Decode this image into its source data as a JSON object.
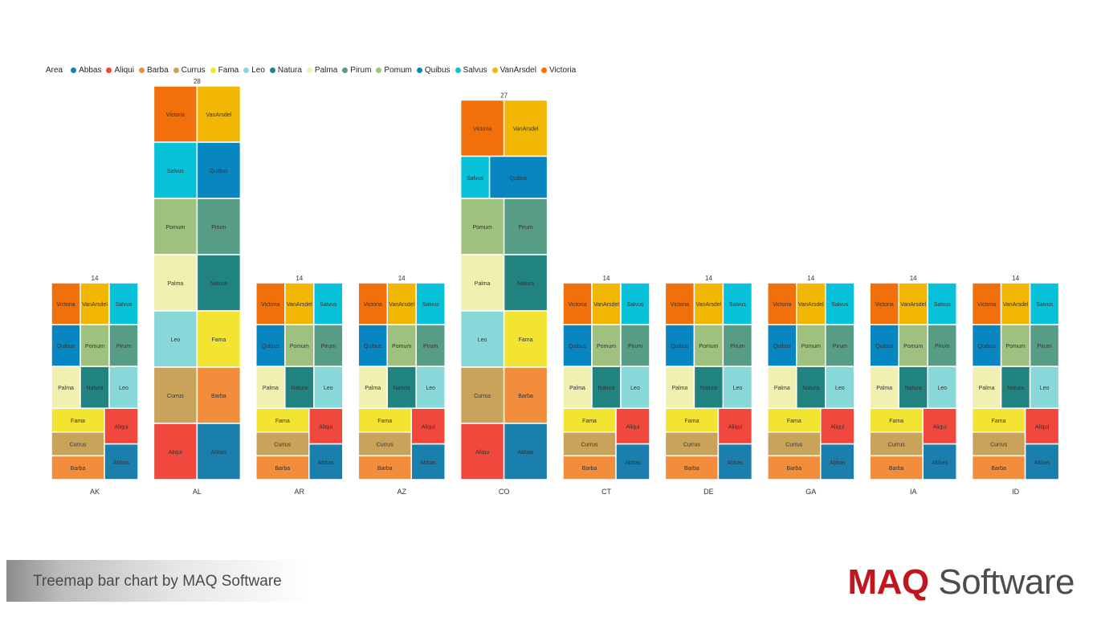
{
  "chart_data": {
    "type": "treemap-bar",
    "legend_title": "Area",
    "legend": [
      {
        "name": "Abbas",
        "color": "#1b7fae"
      },
      {
        "name": "Aliqui",
        "color": "#f0483c"
      },
      {
        "name": "Barba",
        "color": "#f28e3b"
      },
      {
        "name": "Currus",
        "color": "#c9a35a"
      },
      {
        "name": "Fama",
        "color": "#f2e431"
      },
      {
        "name": "Leo",
        "color": "#88d7d9"
      },
      {
        "name": "Natura",
        "color": "#218380"
      },
      {
        "name": "Palma",
        "color": "#f2f0b0"
      },
      {
        "name": "Pirum",
        "color": "#579d86"
      },
      {
        "name": "Pomum",
        "color": "#9ec17f"
      },
      {
        "name": "Quibus",
        "color": "#0886c2"
      },
      {
        "name": "Salvus",
        "color": "#08c2da"
      },
      {
        "name": "VanArsdel",
        "color": "#f2b705"
      },
      {
        "name": "Victoria",
        "color": "#f2700b"
      }
    ],
    "categories": [
      "AK",
      "AL",
      "AR",
      "AZ",
      "CO",
      "CT",
      "DE",
      "GA",
      "IA",
      "ID"
    ],
    "totals": [
      14,
      28,
      14,
      14,
      27,
      14,
      14,
      14,
      14,
      14
    ],
    "series_per_bar": {
      "AK": {
        "Abbas": 1,
        "Aliqui": 1,
        "Barba": 1,
        "Currus": 1,
        "Fama": 1,
        "Leo": 1,
        "Natura": 1,
        "Palma": 1,
        "Pirum": 1,
        "Pomum": 1,
        "Quibus": 1,
        "Salvus": 1,
        "VanArsdel": 1,
        "Victoria": 1
      },
      "AL": {
        "Abbas": 2,
        "Aliqui": 2,
        "Barba": 2,
        "Currus": 2,
        "Fama": 2,
        "Leo": 2,
        "Natura": 2,
        "Palma": 2,
        "Pirum": 2,
        "Pomum": 2,
        "Quibus": 2,
        "Salvus": 2,
        "VanArsdel": 2,
        "Victoria": 2
      },
      "CO": {
        "Abbas": 2,
        "Aliqui": 2,
        "Barba": 2,
        "Currus": 2,
        "Fama": 2,
        "Leo": 2,
        "Natura": 2,
        "Palma": 2,
        "Pirum": 2,
        "Pomum": 2,
        "Quibus": 2,
        "Salvus": 1,
        "VanArsdel": 2,
        "Victoria": 2
      }
    },
    "ylim": [
      0,
      28
    ]
  },
  "footer": {
    "caption": "Treemap bar chart by MAQ Software",
    "logo_maq": "MAQ",
    "logo_software": "Software"
  }
}
